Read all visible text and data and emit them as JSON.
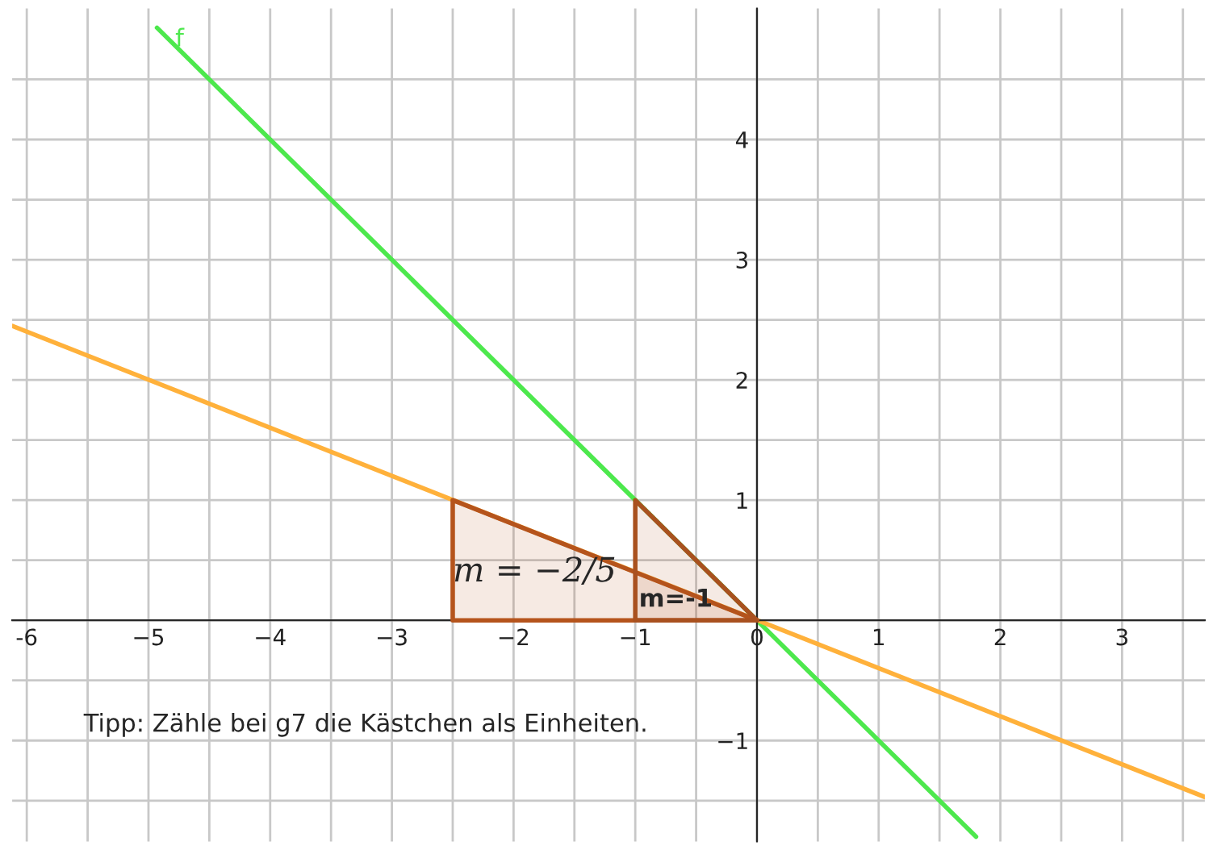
{
  "chart_data": {
    "type": "line",
    "series": [
      {
        "name": "f",
        "color": "#4de84d",
        "x": [
          -4.93,
          1.8
        ],
        "values": [
          4.93,
          -1.8
        ]
      },
      {
        "color": "#ffb13b",
        "x": [
          -6.12,
          3.68
        ],
        "values": [
          2.45,
          -1.47
        ]
      },
      {
        "type": "area",
        "color": "#b5541c",
        "x": [
          -2.5,
          -2.5,
          0,
          -2.5
        ],
        "values": [
          0,
          1,
          0,
          0
        ]
      },
      {
        "type": "area",
        "color": "#a9511f",
        "x": [
          -1,
          -1,
          0,
          -1
        ],
        "values": [
          0,
          1,
          0,
          0
        ]
      }
    ],
    "annotations": [
      {
        "text": "m = −2/5",
        "x": -2.5,
        "y": 0.4
      },
      {
        "text": "m=-1",
        "x": -0.97,
        "y": 0.17
      },
      "Tipp: Zähle bei g7 die Kästchen als Einheiten."
    ],
    "xlim": [
      -6.12,
      3.68
    ],
    "ylim": [
      -1.84,
      5.09
    ],
    "xticks": [
      {
        "value": -6,
        "label": "-6"
      },
      {
        "value": -5.5,
        "label": null
      },
      {
        "value": -5,
        "label": "−5"
      },
      {
        "value": -4.5,
        "label": null
      },
      {
        "value": -4,
        "label": "−4"
      },
      {
        "value": -3.5,
        "label": null
      },
      {
        "value": -3,
        "label": "−3"
      },
      {
        "value": -2.5,
        "label": null
      },
      {
        "value": -2,
        "label": "−2"
      },
      {
        "value": -1.5,
        "label": null
      },
      {
        "value": -1,
        "label": "−1"
      },
      {
        "value": -0.5,
        "label": null
      },
      {
        "value": 0,
        "label": "0"
      },
      {
        "value": 0.5,
        "label": null
      },
      1,
      {
        "value": 1.5,
        "label": null
      },
      2,
      {
        "value": 2.5,
        "label": null
      },
      3,
      {
        "value": 3.5,
        "label": null
      }
    ],
    "yticks": [
      {
        "value": -1.5,
        "label": null
      },
      {
        "value": -1,
        "label": "−1"
      },
      {
        "value": -0.5,
        "label": null
      },
      {
        "value": 0,
        "label": null
      },
      {
        "value": 0.5,
        "label": null
      },
      1,
      {
        "value": 1.5,
        "label": null
      },
      2,
      {
        "value": 2.5,
        "label": null
      },
      3,
      {
        "value": 3.5,
        "label": null
      },
      4,
      {
        "value": 4.5,
        "label": null
      }
    ],
    "grid": true,
    "legend": false
  }
}
